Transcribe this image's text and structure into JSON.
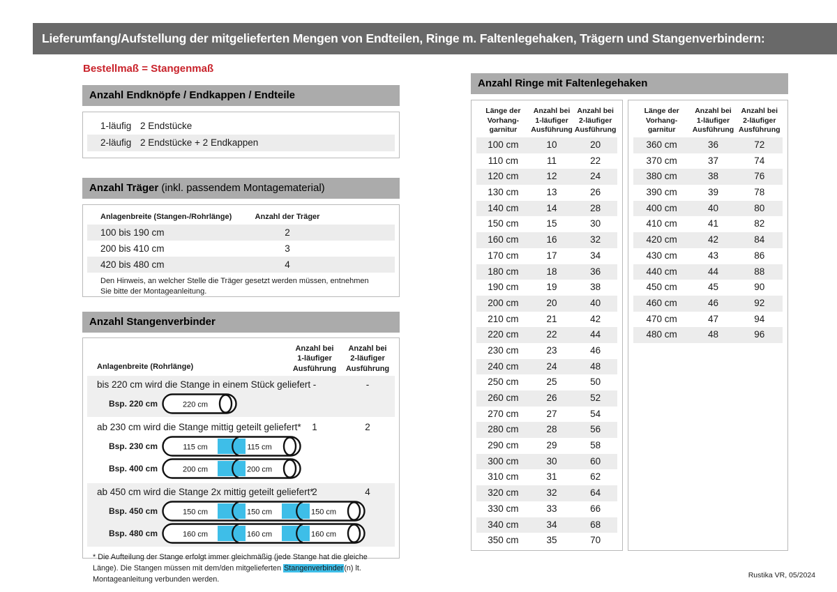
{
  "page": {
    "header": "Lieferumfang/Aufstellung der mitgelieferten Mengen von Endteilen, Ringe m. Faltenlegehaken, Trägern und Stangenverbindern:",
    "subtitle": "Bestellmaß = Stangenmaß",
    "footer": "Rustika VR, 05/2024"
  },
  "colors": {
    "accent_red": "#c9232b",
    "connector_blue": "#3ebee8",
    "topbar_gray": "#696969",
    "section_gray": "#ababab",
    "stripe_gray": "#ececec"
  },
  "endteile": {
    "title": "Anzahl Endknöpfe / Endkappen / Endteile",
    "rows": [
      {
        "label": "1-läufig",
        "value": "2 Endstücke"
      },
      {
        "label": "2-läufig",
        "value": "2 Endstücke + 2 Endkappen"
      }
    ]
  },
  "traeger": {
    "title_bold": "Anzahl Träger",
    "title_rest": " (inkl. passendem Montagematerial)",
    "col1": "Anlagenbreite (Stangen-/Rohrlänge)",
    "col2": "Anzahl der Träger",
    "rows": [
      {
        "range": "100 bis 190 cm",
        "count": "2"
      },
      {
        "range": "200 bis 410 cm",
        "count": "3"
      },
      {
        "range": "420 bis 480 cm",
        "count": "4"
      }
    ],
    "note": "Den Hinweis, an welcher Stelle die Träger gesetzt werden müssen, entnehmen Sie bitte der Montageanleitung."
  },
  "verbinder": {
    "title": "Anzahl Stangenverbinder",
    "col1": "Anlagenbreite (Rohrlänge)",
    "col2": "Anzahl bei\n1-läufiger\nAusführung",
    "col3": "Anzahl bei\n2-läufiger\nAusführung",
    "blocks": [
      {
        "desc": "bis 220 cm wird die Stange in einem Stück geliefert",
        "count1": "-",
        "count2": "-",
        "shade": true,
        "rods": [
          {
            "label": "Bsp. 220 cm",
            "segments": [
              "220 cm"
            ]
          }
        ]
      },
      {
        "desc": "ab 230 cm wird die Stange mittig geteilt geliefert*",
        "count1": "1",
        "count2": "2",
        "shade": false,
        "rods": [
          {
            "label": "Bsp. 230 cm",
            "segments": [
              "115 cm",
              "115 cm"
            ]
          },
          {
            "label": "Bsp. 400 cm",
            "segments": [
              "200 cm",
              "200 cm"
            ]
          }
        ]
      },
      {
        "desc": "ab 450 cm wird die Stange 2x mittig geteilt geliefert*",
        "count1": "2",
        "count2": "4",
        "shade": true,
        "rods": [
          {
            "label": "Bsp. 450 cm",
            "segments": [
              "150 cm",
              "150 cm",
              "150 cm"
            ]
          },
          {
            "label": "Bsp. 480 cm",
            "segments": [
              "160 cm",
              "160 cm",
              "160 cm"
            ]
          }
        ]
      }
    ],
    "footnote_pre": "* Die Aufteilung der Stange erfolgt immer gleichmäßig (jede Stange hat die gleiche Länge). Die Stangen müssen mit dem/den mitgelieferten ",
    "footnote_highlight": "Stangenverbinder",
    "footnote_post": "(n) lt. Montageanleitung verbunden werden."
  },
  "ringe": {
    "title": "Anzahl Ringe mit Faltenlegehaken",
    "col_headers": [
      "Länge der\nVorhang-\ngarnitur",
      "Anzahl bei\n1-läufiger\nAusführung",
      "Anzahl bei\n2-läufiger\nAusführung"
    ],
    "table_left": {
      "rows": [
        [
          "100 cm",
          "10",
          "20"
        ],
        [
          "110 cm",
          "11",
          "22"
        ],
        [
          "120 cm",
          "12",
          "24"
        ],
        [
          "130 cm",
          "13",
          "26"
        ],
        [
          "140 cm",
          "14",
          "28"
        ],
        [
          "150 cm",
          "15",
          "30"
        ],
        [
          "160 cm",
          "16",
          "32"
        ],
        [
          "170 cm",
          "17",
          "34"
        ],
        [
          "180 cm",
          "18",
          "36"
        ],
        [
          "190 cm",
          "19",
          "38"
        ],
        [
          "200 cm",
          "20",
          "40"
        ],
        [
          "210 cm",
          "21",
          "42"
        ],
        [
          "220 cm",
          "22",
          "44"
        ],
        [
          "230 cm",
          "23",
          "46"
        ],
        [
          "240 cm",
          "24",
          "48"
        ],
        [
          "250 cm",
          "25",
          "50"
        ],
        [
          "260 cm",
          "26",
          "52"
        ],
        [
          "270 cm",
          "27",
          "54"
        ],
        [
          "280 cm",
          "28",
          "56"
        ],
        [
          "290 cm",
          "29",
          "58"
        ],
        [
          "300 cm",
          "30",
          "60"
        ],
        [
          "310 cm",
          "31",
          "62"
        ],
        [
          "320 cm",
          "32",
          "64"
        ],
        [
          "330 cm",
          "33",
          "66"
        ],
        [
          "340 cm",
          "34",
          "68"
        ],
        [
          "350 cm",
          "35",
          "70"
        ]
      ]
    },
    "table_right": {
      "rows": [
        [
          "360 cm",
          "36",
          "72"
        ],
        [
          "370 cm",
          "37",
          "74"
        ],
        [
          "380 cm",
          "38",
          "76"
        ],
        [
          "390 cm",
          "39",
          "78"
        ],
        [
          "400 cm",
          "40",
          "80"
        ],
        [
          "410 cm",
          "41",
          "82"
        ],
        [
          "420 cm",
          "42",
          "84"
        ],
        [
          "430 cm",
          "43",
          "86"
        ],
        [
          "440 cm",
          "44",
          "88"
        ],
        [
          "450 cm",
          "45",
          "90"
        ],
        [
          "460 cm",
          "46",
          "92"
        ],
        [
          "470 cm",
          "47",
          "94"
        ],
        [
          "480 cm",
          "48",
          "96"
        ]
      ]
    }
  }
}
